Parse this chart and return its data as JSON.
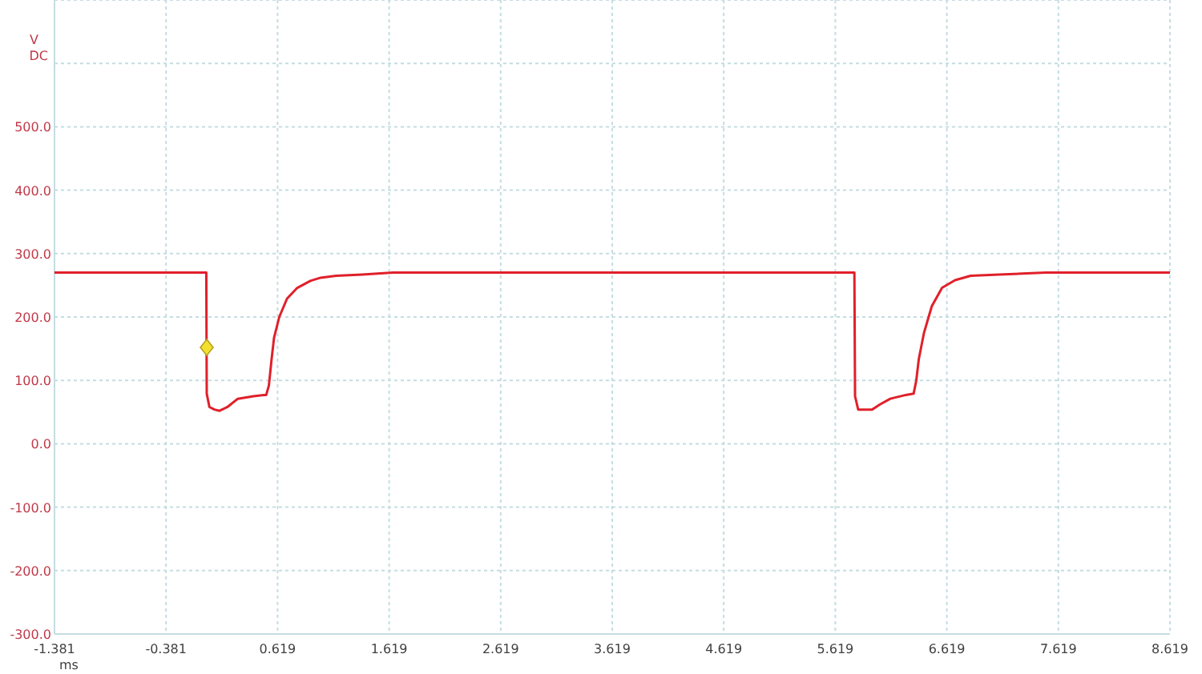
{
  "chart_data": {
    "type": "line",
    "xlabel": "ms",
    "ylabel": "V DC",
    "xlim": [
      -1.381,
      8.619
    ],
    "xticks": [
      -1.381,
      -0.381,
      0.619,
      1.619,
      2.619,
      3.619,
      4.619,
      5.619,
      6.619,
      7.619,
      8.619
    ],
    "ylim": [
      -300,
      700
    ],
    "yticks": [
      {
        "value": -300,
        "label": "-300.0"
      },
      {
        "value": -200,
        "label": "-200.0"
      },
      {
        "value": -100,
        "label": "-100.0"
      },
      {
        "value": 0,
        "label": "0.0"
      },
      {
        "value": 100,
        "label": "100.0"
      },
      {
        "value": 200,
        "label": "200.0"
      },
      {
        "value": 300,
        "label": "300.0"
      },
      {
        "value": 400,
        "label": "400.0"
      },
      {
        "value": 500,
        "label": "500.0"
      },
      {
        "value": 600,
        "label": null
      },
      {
        "value": 700,
        "label": null
      }
    ],
    "grid": true,
    "marker": "none",
    "line_style": "solid",
    "series": [
      {
        "color": "#e0202a",
        "x": [
          -1.381,
          -0.02,
          -0.016,
          0.008,
          0.053,
          0.099,
          0.169,
          0.262,
          0.402,
          0.495,
          0.517,
          0.541,
          0.565,
          0.587,
          0.634,
          0.704,
          0.796,
          0.913,
          1.005,
          1.144,
          1.377,
          1.655,
          5.79,
          5.796,
          5.824,
          5.949,
          6.019,
          6.112,
          6.251,
          6.321,
          6.345,
          6.367,
          6.414,
          6.484,
          6.576,
          6.693,
          6.832,
          7.087,
          7.505,
          8.619
        ],
        "values": [
          270,
          270,
          79,
          58,
          54,
          52,
          58,
          71,
          75,
          77,
          77,
          92,
          133,
          167,
          200,
          229,
          246,
          257,
          262,
          265,
          267,
          270,
          270,
          75,
          54,
          54,
          62,
          71,
          77,
          79,
          100,
          133,
          175,
          217,
          246,
          258,
          265,
          267,
          270,
          270
        ]
      }
    ]
  }
}
